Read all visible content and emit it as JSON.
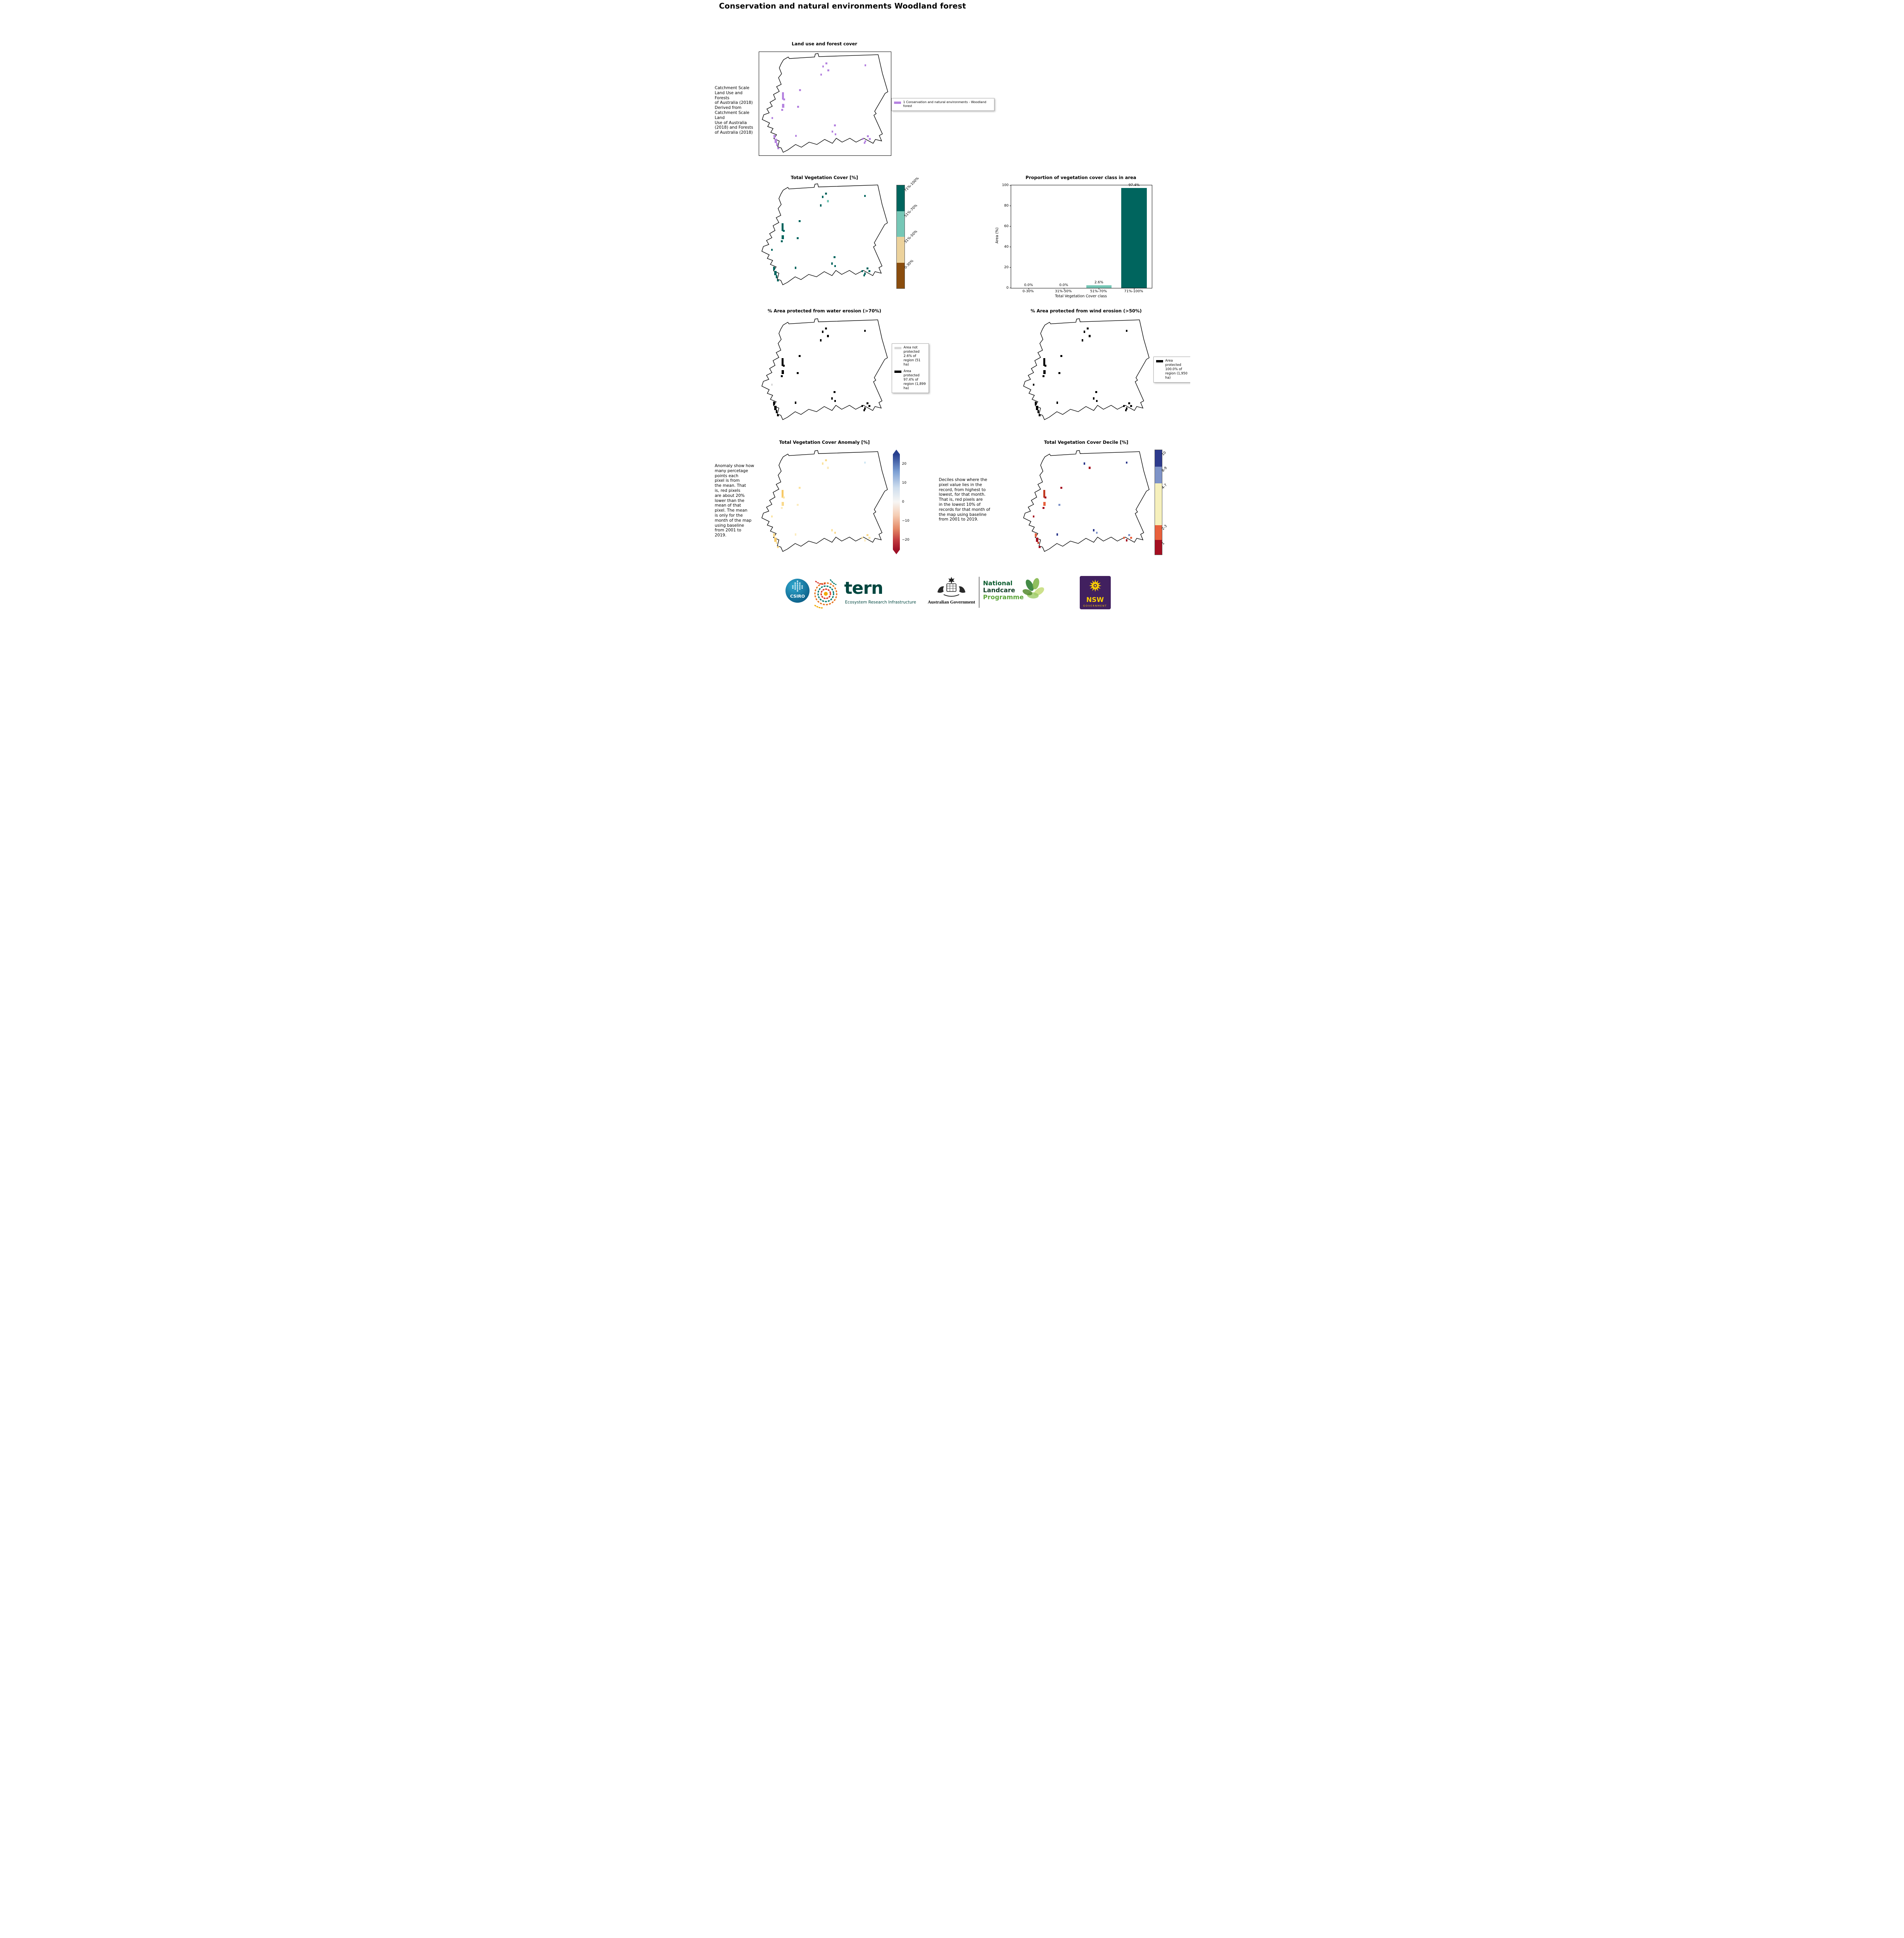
{
  "page": {
    "title": "Conservation and natural environments Woodland forest"
  },
  "panels": {
    "landuse": {
      "title": "Land use and forest cover",
      "side_text": " Catchment Scale\nLand Use and Forests\nof Australia (2018)\nDerived from\nCatchment Scale Land\nUse of Australia\n(2018) and Forests\nof Australia (2018)",
      "legend": {
        "color": "#b583e0",
        "label": "1 Conservation and natural environments - Woodland forest"
      }
    },
    "vegcover": {
      "title": "Total Vegetation Cover [%]",
      "colorbar": {
        "labels": [
          "71%-100%",
          "51%-70%",
          "31%-50%",
          "0-30%"
        ],
        "colors": [
          "#00655e",
          "#76c7b6",
          "#ecd29c",
          "#8a4d0e"
        ]
      }
    },
    "water": {
      "title": "% Area protected from water erosion (>70%)",
      "legend": [
        {
          "color": "#d9d9d9",
          "label": "Area not protected 2.6% of region (51 ha)"
        },
        {
          "color": "#000000",
          "label": "Area protected 97.4% of region (1,899 ha)"
        }
      ]
    },
    "wind": {
      "title": "% Area protected from wind erosion (>50%)",
      "legend": [
        {
          "color": "#000000",
          "label": "Area protected 100.0% of region (1,950 ha)"
        }
      ]
    },
    "anomaly": {
      "title": "Total Vegetation Cover Anomaly [%]",
      "side_text": "Anomaly show how\nmany percetage\npoints each\npixel is from\nthe mean. That\nis, red pixels\nare about 20%\nlower than the\nmean of that\npixel. The mean\nis only for the\nmonth of the map\nusing baseline\nfrom 2001 to\n2019.",
      "colorbar": {
        "ticks": [
          "20",
          "10",
          "0",
          "−10",
          "−20"
        ],
        "top_color": "#27408f",
        "bottom_color": "#9e1127"
      }
    },
    "decile": {
      "title": "Total Vegetation Cover Decile [%]",
      "side_text": "Deciles show where the\npixel value lies in the\nrecord, from highest to\nlowest, for that month.\nThat is, red pixels are\nin the lowest 10% of\nrecords for that month of\nthe map using baseline\nfrom 2001 to 2019.",
      "colorbar": {
        "labels": [
          "10",
          "8-9",
          "4-7",
          "2-3",
          "1"
        ],
        "colors": [
          "#2d3a8c",
          "#7e93c8",
          "#f6f0bc",
          "#e8603c",
          "#a50f21"
        ]
      }
    }
  },
  "chart_data": {
    "type": "bar",
    "title": "Proportion of vegetation cover class in area",
    "categories": [
      "0-30%",
      "31%-50%",
      "51%-70%",
      "71%-100%"
    ],
    "values": [
      0.0,
      0.0,
      2.6,
      97.4
    ],
    "value_labels": [
      "0.0%",
      "0.0%",
      "2.6%",
      "97.4%"
    ],
    "bar_colors": [
      "#8a4d0e",
      "#ecd29c",
      "#76c7b6",
      "#00655e"
    ],
    "xlabel": "Total Vegetation Cover class",
    "ylabel": "Area (%)",
    "ylim": [
      0,
      100
    ],
    "ytick_labels": [
      "0",
      "20",
      "40",
      "60",
      "80",
      "100"
    ],
    "grid": false,
    "legend_position": "none"
  },
  "maps": {
    "landuse": {
      "color": "#b583e0",
      "points": [
        [
          48,
          13
        ],
        [
          50.5,
          10
        ],
        [
          52,
          17
        ],
        [
          46.5,
          21
        ],
        [
          80,
          12
        ],
        [
          17.5,
          39,
          1.5,
          7
        ],
        [
          18.5,
          45
        ],
        [
          17.5,
          50,
          1.8,
          4
        ],
        [
          17,
          55
        ],
        [
          9.5,
          63
        ],
        [
          29,
          52
        ],
        [
          30.5,
          36
        ],
        [
          11,
          80,
          1.4,
          3
        ],
        [
          12,
          84,
          1.6,
          4
        ],
        [
          13,
          88,
          1.4,
          3
        ],
        [
          14,
          92
        ],
        [
          27.5,
          80
        ],
        [
          55,
          76
        ],
        [
          57.5,
          78.5
        ],
        [
          57,
          70
        ],
        [
          78,
          83
        ],
        [
          80,
          85.5
        ],
        [
          82,
          80.5
        ],
        [
          79.5,
          87
        ],
        [
          83.5,
          83
        ]
      ]
    },
    "vegcover": {
      "color": "#00655e",
      "points": [
        [
          48,
          13
        ],
        [
          50.5,
          10
        ],
        [
          52,
          17,
          "#76c7b6"
        ],
        [
          46.5,
          21
        ],
        [
          80,
          12
        ],
        [
          17.5,
          39,
          1.5,
          7
        ],
        [
          18.5,
          45
        ],
        [
          17.5,
          50,
          1.8,
          4
        ],
        [
          17,
          55
        ],
        [
          9.5,
          63
        ],
        [
          29,
          52
        ],
        [
          30.5,
          36
        ],
        [
          11,
          80,
          1.4,
          3
        ],
        [
          12,
          84,
          1.6,
          4
        ],
        [
          13,
          88,
          1.4,
          3
        ],
        [
          14,
          92
        ],
        [
          27.5,
          80
        ],
        [
          55,
          76
        ],
        [
          57.5,
          78.5
        ],
        [
          57,
          70
        ],
        [
          78,
          83
        ],
        [
          80,
          85.5
        ],
        [
          82,
          80.5
        ],
        [
          79.5,
          87
        ],
        [
          83.5,
          83
        ]
      ]
    },
    "water": {
      "color": "#000000",
      "points": [
        [
          48,
          13
        ],
        [
          50.5,
          10
        ],
        [
          52,
          17
        ],
        [
          46.5,
          21
        ],
        [
          80,
          12
        ],
        [
          17.5,
          39,
          1.5,
          7
        ],
        [
          18.5,
          45
        ],
        [
          17.5,
          50,
          1.8,
          4
        ],
        [
          17,
          55
        ],
        [
          9.5,
          63,
          "#d9d9d9"
        ],
        [
          29,
          52
        ],
        [
          30.5,
          36
        ],
        [
          11,
          80,
          1.4,
          3
        ],
        [
          12,
          84,
          1.6,
          4
        ],
        [
          13,
          88,
          1.4,
          3
        ],
        [
          14,
          92
        ],
        [
          27.5,
          80
        ],
        [
          55,
          76
        ],
        [
          57.5,
          78.5
        ],
        [
          57,
          70
        ],
        [
          78,
          83
        ],
        [
          80,
          85.5
        ],
        [
          82,
          80.5
        ],
        [
          79.5,
          87
        ],
        [
          83.5,
          83
        ]
      ]
    },
    "wind": {
      "color": "#000000",
      "points": [
        [
          48,
          13
        ],
        [
          50.5,
          10
        ],
        [
          52,
          17
        ],
        [
          46.5,
          21
        ],
        [
          80,
          12
        ],
        [
          17.5,
          39,
          1.5,
          7
        ],
        [
          18.5,
          45
        ],
        [
          17.5,
          50,
          1.8,
          4
        ],
        [
          17,
          55
        ],
        [
          9.5,
          63
        ],
        [
          29,
          52
        ],
        [
          30.5,
          36
        ],
        [
          11,
          80,
          1.4,
          3
        ],
        [
          12,
          84,
          1.6,
          4
        ],
        [
          13,
          88,
          1.4,
          3
        ],
        [
          14,
          92
        ],
        [
          27.5,
          80
        ],
        [
          55,
          76
        ],
        [
          57.5,
          78.5
        ],
        [
          57,
          70
        ],
        [
          78,
          83
        ],
        [
          80,
          85.5
        ],
        [
          82,
          80.5
        ],
        [
          79.5,
          87
        ],
        [
          83.5,
          83
        ]
      ]
    },
    "anomaly": {
      "color": "#fbe3a0",
      "points": [
        [
          48,
          13,
          "#fbe3a0"
        ],
        [
          50.5,
          10,
          "#f9d98c"
        ],
        [
          52,
          17,
          "#fcecc0"
        ],
        [
          80,
          12,
          "#cfe6f3"
        ],
        [
          17.5,
          39,
          "#f7c968",
          1.5,
          7
        ],
        [
          18.5,
          45,
          "#fbe3a0"
        ],
        [
          17.5,
          50,
          "#f9d98c",
          1.8,
          4
        ],
        [
          17,
          55,
          "#fcecc0"
        ],
        [
          9.5,
          63,
          "#fbe3a0"
        ],
        [
          29,
          52,
          "#fcecc0"
        ],
        [
          30.5,
          36,
          "#fbe3a0"
        ],
        [
          11,
          80,
          "#f9d98c",
          1.4,
          3
        ],
        [
          12,
          84,
          "#f7c968",
          1.6,
          4
        ],
        [
          13,
          88,
          "#fbe3a0"
        ],
        [
          14,
          92,
          "#f9d98c"
        ],
        [
          27.5,
          80,
          "#fcecc0"
        ],
        [
          55,
          76,
          "#fbe3a0"
        ],
        [
          57.5,
          78.5,
          "#f9d98c"
        ],
        [
          78,
          83,
          "#fbe3a0"
        ],
        [
          80,
          85.5,
          "#fcecc0"
        ],
        [
          82,
          80.5,
          "#f9d98c"
        ],
        [
          83.5,
          83,
          "#fbe3a0"
        ]
      ]
    },
    "decile": {
      "color": "#a50f21",
      "points": [
        [
          48,
          13,
          "#2d3a8c"
        ],
        [
          52,
          17,
          "#a50f21"
        ],
        [
          80,
          12,
          "#2d3a8c"
        ],
        [
          17.5,
          39,
          "#c23b22",
          1.5,
          7
        ],
        [
          18.5,
          45,
          "#a50f21"
        ],
        [
          17.5,
          50,
          "#e8603c",
          1.8,
          4
        ],
        [
          17,
          55,
          "#a50f21"
        ],
        [
          9.5,
          63,
          "#a50f21"
        ],
        [
          29,
          52,
          "#7e93c8"
        ],
        [
          30.5,
          36,
          "#a50f21"
        ],
        [
          11,
          80,
          "#e8603c",
          1.4,
          3
        ],
        [
          12,
          84,
          "#a50f21",
          1.6,
          4
        ],
        [
          13,
          88,
          "#c23b22"
        ],
        [
          14,
          92,
          "#a50f21"
        ],
        [
          27.5,
          80,
          "#2d3a8c"
        ],
        [
          55,
          76,
          "#2d3a8c"
        ],
        [
          57.5,
          78.5,
          "#7e93c8"
        ],
        [
          78,
          83,
          "#e8603c"
        ],
        [
          80,
          85.5,
          "#a50f21"
        ],
        [
          82,
          80.5,
          "#7e93c8"
        ],
        [
          83.5,
          83,
          "#e8603c"
        ]
      ]
    }
  },
  "footer": {
    "csiro": "CSIRO",
    "tern": "tern",
    "tern_subtitle": "Ecosystem Research Infrastructure",
    "aus_gov": "Australian Government",
    "landcare": {
      "line1": "National",
      "line2": "Landcare",
      "line3": "Programme"
    },
    "nsw": {
      "line1": "NSW",
      "line2": "GOVERNMENT"
    }
  }
}
